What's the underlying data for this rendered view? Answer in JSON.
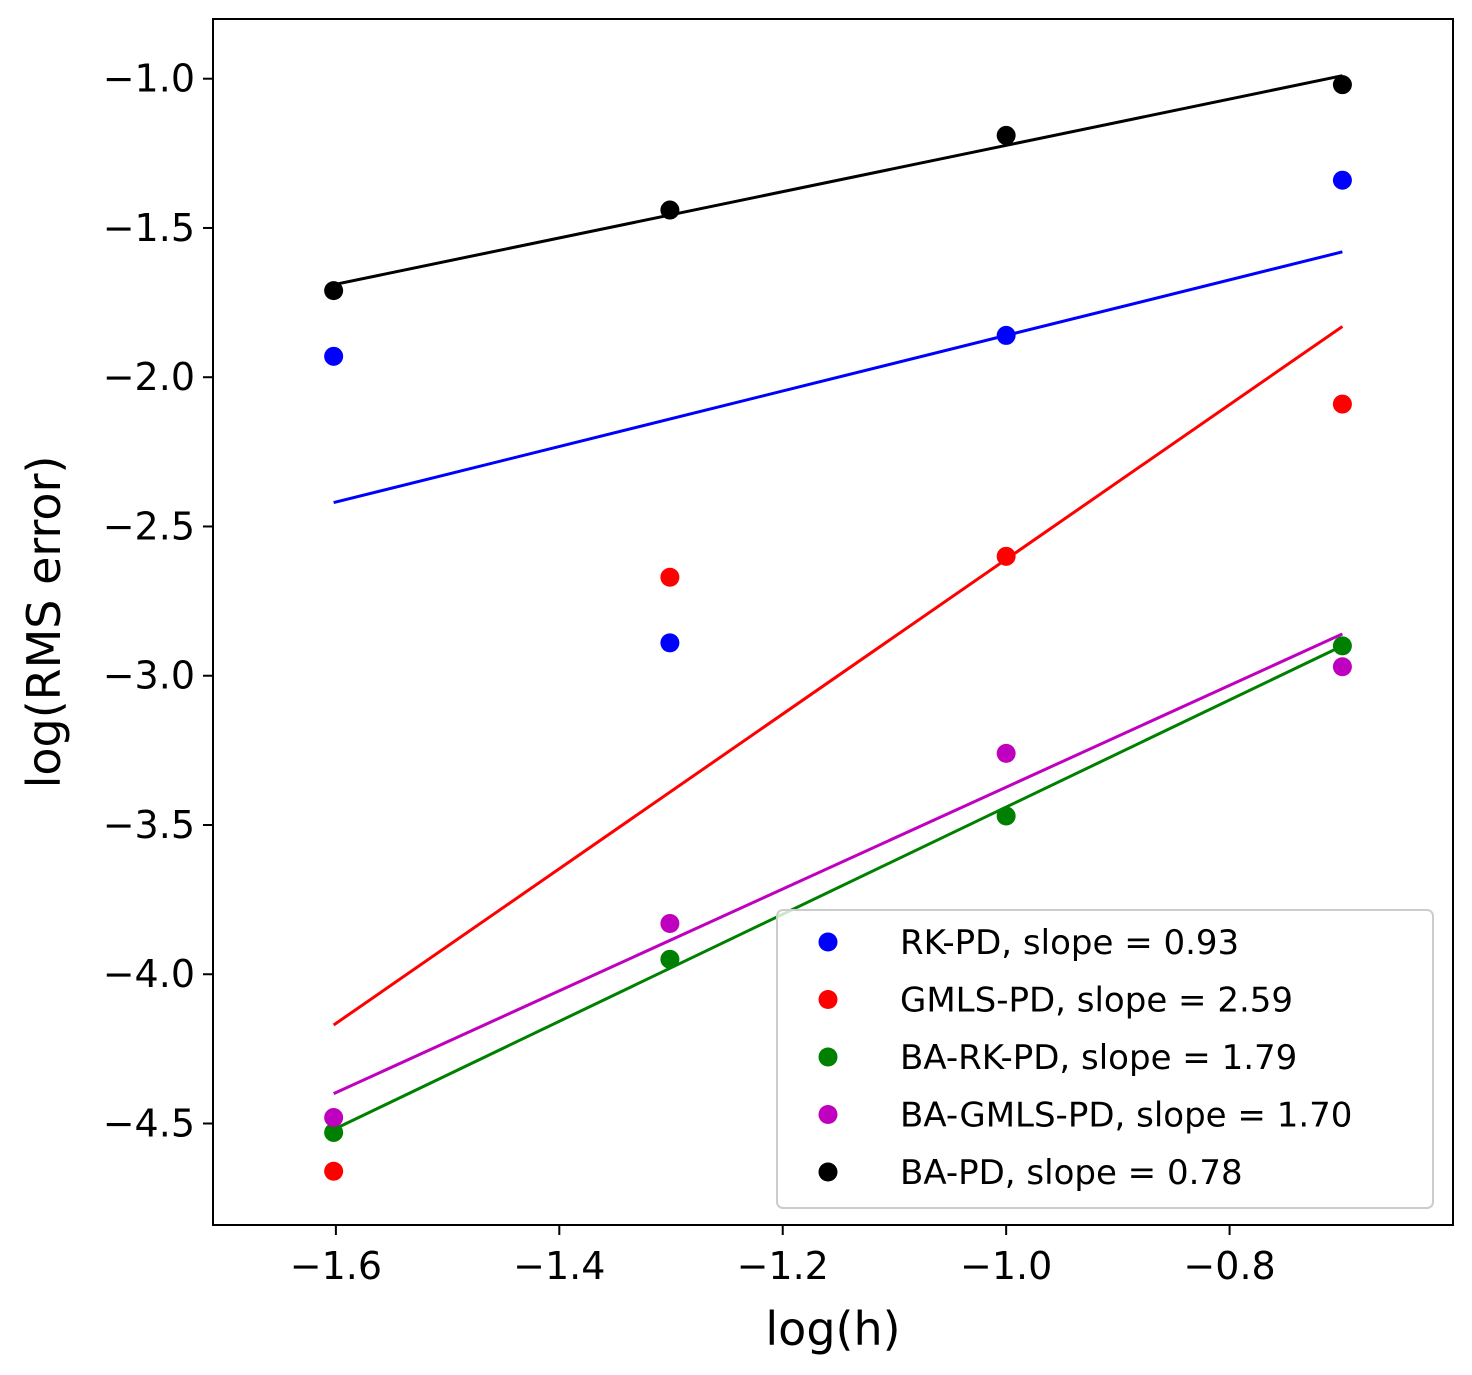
{
  "chart_data": {
    "type": "scatter",
    "title": "",
    "xlabel": "log(h)",
    "ylabel": "log(RMS error)",
    "xlim": [
      -1.71,
      -0.6
    ],
    "ylim": [
      -4.84,
      -0.8
    ],
    "xticks": [
      -1.6,
      -1.4,
      -1.2,
      -1.0,
      -0.8
    ],
    "xtick_labels": [
      "−1.6",
      "−1.4",
      "−1.2",
      "−1.0",
      "−0.8"
    ],
    "yticks": [
      -1.0,
      -1.5,
      -2.0,
      -2.5,
      -3.0,
      -3.5,
      -4.0,
      -4.5
    ],
    "ytick_labels": [
      "−1.0",
      "−1.5",
      "−2.0",
      "−2.5",
      "−3.0",
      "−3.5",
      "−4.0",
      "−4.5"
    ],
    "legend_position": "lower-right",
    "x": [
      -1.602,
      -1.301,
      -1.0,
      -0.699
    ],
    "series": [
      {
        "name": "RK-PD, slope = 0.93",
        "color": "#0000ff",
        "points": [
          -1.93,
          -2.89,
          -1.86,
          -1.34
        ],
        "fit_line": [
          [
            -1.602,
            -2.42
          ],
          [
            -0.699,
            -1.58
          ]
        ]
      },
      {
        "name": "GMLS-PD, slope = 2.59",
        "color": "#ff0000",
        "points": [
          -4.66,
          -2.67,
          -2.6,
          -2.09
        ],
        "fit_line": [
          [
            -1.602,
            -4.17
          ],
          [
            -0.699,
            -1.83
          ]
        ]
      },
      {
        "name": "BA-RK-PD, slope = 1.79",
        "color": "#008000",
        "points": [
          -4.53,
          -3.95,
          -3.47,
          -2.9
        ],
        "fit_line": [
          [
            -1.602,
            -4.52
          ],
          [
            -0.699,
            -2.9
          ]
        ]
      },
      {
        "name": "BA-GMLS-PD, slope = 1.70",
        "color": "#bf00bf",
        "points": [
          -4.48,
          -3.83,
          -3.26,
          -2.97
        ],
        "fit_line": [
          [
            -1.602,
            -4.4
          ],
          [
            -0.699,
            -2.86
          ]
        ]
      },
      {
        "name": "BA-PD, slope = 0.78",
        "color": "#000000",
        "points": [
          -1.71,
          -1.44,
          -1.19,
          -1.02
        ],
        "fit_line": [
          [
            -1.602,
            -1.69
          ],
          [
            -0.699,
            -0.99
          ]
        ]
      }
    ]
  }
}
